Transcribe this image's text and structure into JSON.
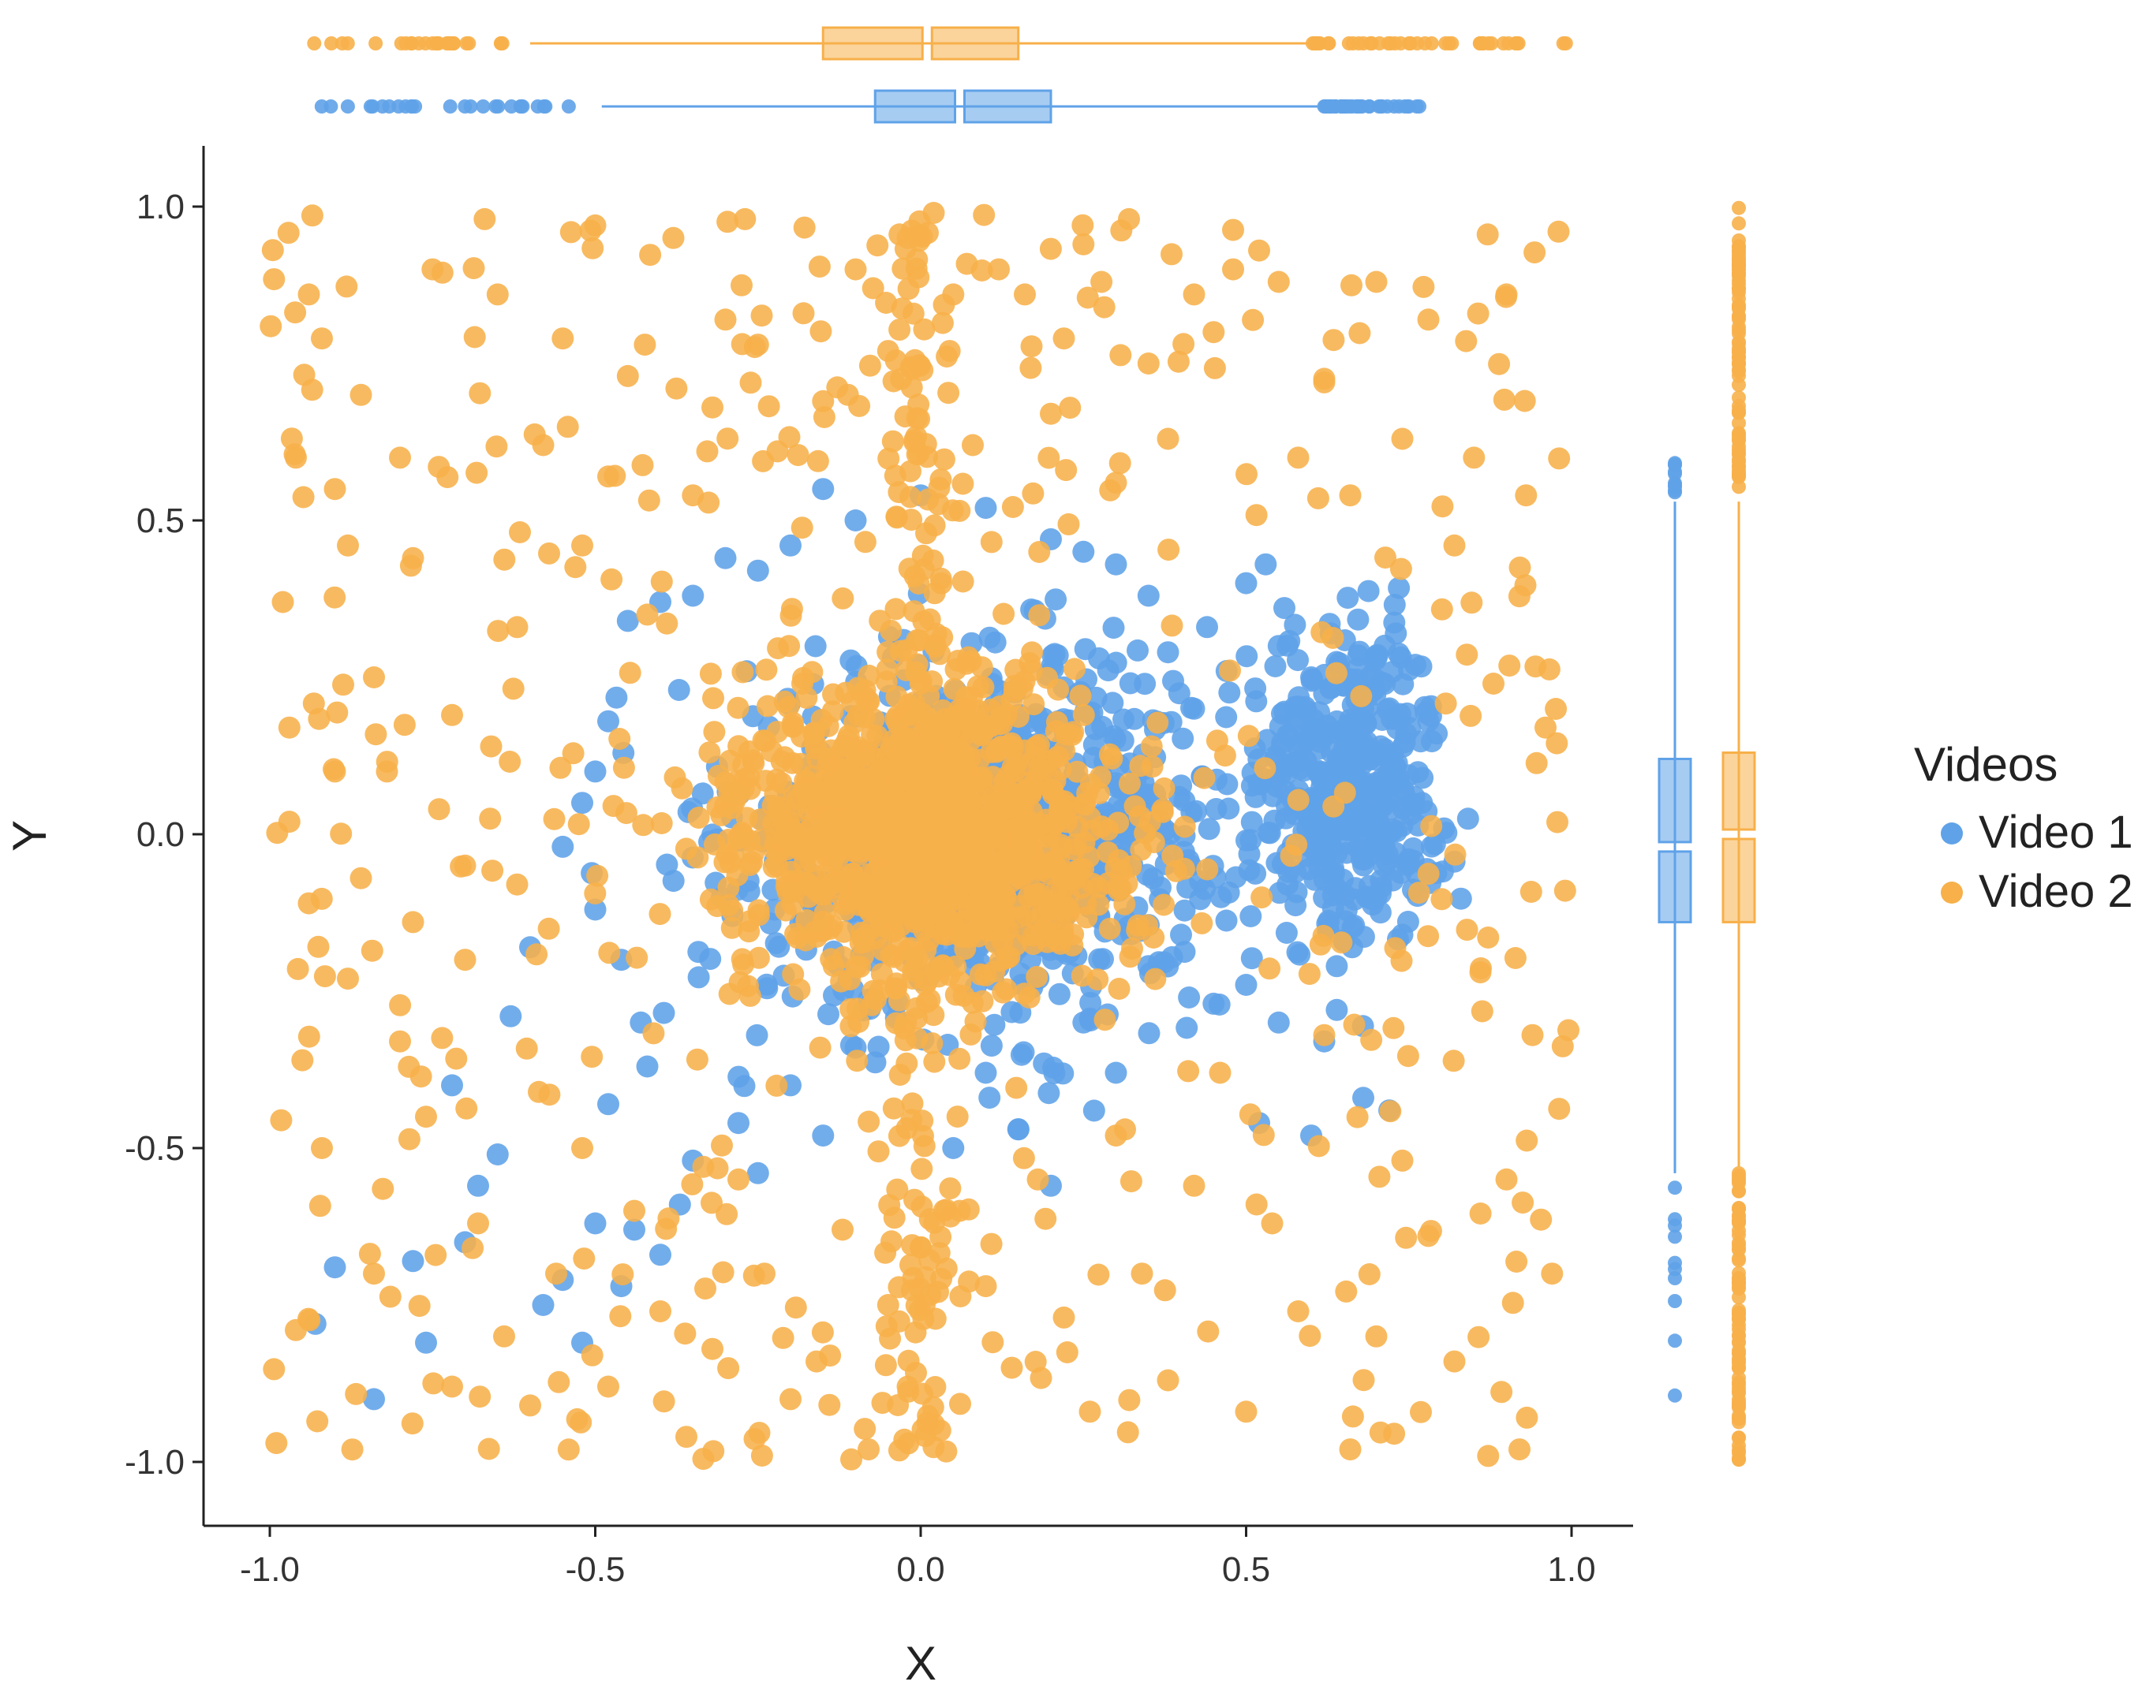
{
  "chart_data": {
    "type": "scatter",
    "title": "",
    "xlabel": "X",
    "ylabel": "Y",
    "xlim": [
      -1.09,
      1.09
    ],
    "ylim": [
      -1.09,
      1.09
    ],
    "x_ticks": [
      -1.0,
      -0.5,
      0.0,
      0.5,
      1.0
    ],
    "x_tick_labels": [
      "-1.0",
      "-0.5",
      "0.0",
      "0.5",
      "1.0"
    ],
    "y_ticks": [
      -1.0,
      -0.5,
      0.0,
      0.5,
      1.0
    ],
    "y_tick_labels": [
      "-1.0",
      "-0.5",
      "0.0",
      "0.5",
      "1.0"
    ],
    "grid": false,
    "legend": {
      "title": "Videos",
      "placement": "right"
    },
    "marginal_boxplots": true,
    "series": [
      {
        "name": "Video 1",
        "color": "#5fa2e8",
        "approx_point_count": 2000,
        "center": [
          0.1,
          0.0
        ],
        "x_box": {
          "whisker_low": -0.49,
          "q1": -0.07,
          "median": 0.06,
          "q3": 0.2,
          "whisker_high": 0.61,
          "outliers_range": [
            [
              -0.93,
              -0.51
            ],
            [
              0.62,
              0.79
            ]
          ]
        },
        "y_box": {
          "whisker_low": -0.54,
          "q1": -0.14,
          "median": -0.02,
          "q3": 0.12,
          "whisker_high": 0.53,
          "outliers_range": [
            [
              -0.9,
              -0.55
            ],
            [
              0.54,
              0.6
            ]
          ]
        },
        "points": [
          [
            -0.93,
            -0.78
          ],
          [
            -0.9,
            -0.69
          ],
          [
            -0.84,
            -0.9
          ],
          [
            -0.78,
            -0.68
          ],
          [
            -0.76,
            -0.81
          ],
          [
            -0.72,
            -0.4
          ],
          [
            -0.7,
            -0.65
          ],
          [
            -0.68,
            -0.56
          ],
          [
            -0.65,
            -0.51
          ],
          [
            -0.63,
            -0.29
          ],
          [
            -0.6,
            -0.18
          ],
          [
            -0.58,
            -0.75
          ],
          [
            -0.55,
            -0.71
          ],
          [
            -0.52,
            -0.81
          ],
          [
            -0.5,
            -0.62
          ],
          [
            -0.48,
            -0.43
          ],
          [
            -0.46,
            -0.72
          ],
          [
            -0.44,
            -0.63
          ],
          [
            -0.42,
            -0.37
          ],
          [
            -0.4,
            -0.67
          ],
          [
            -0.37,
            -0.59
          ],
          [
            -0.35,
            -0.52
          ],
          [
            -0.28,
            -0.46
          ],
          [
            -0.25,
            -0.54
          ],
          [
            -0.2,
            -0.4
          ],
          [
            -0.15,
            -0.48
          ],
          [
            -0.1,
            -0.34
          ],
          [
            0.05,
            -0.5
          ],
          [
            0.1,
            -0.38
          ],
          [
            0.15,
            -0.47
          ],
          [
            0.2,
            -0.56
          ],
          [
            0.25,
            -0.3
          ],
          [
            0.3,
            -0.38
          ],
          [
            0.35,
            -0.21
          ],
          [
            0.4,
            -0.16
          ],
          [
            0.45,
            -0.27
          ],
          [
            0.5,
            -0.24
          ],
          [
            0.52,
            -0.46
          ],
          [
            0.55,
            -0.3
          ],
          [
            0.6,
            -0.48
          ],
          [
            0.62,
            -0.33
          ],
          [
            0.65,
            -0.17
          ],
          [
            0.68,
            -0.42
          ],
          [
            0.7,
            -0.1
          ],
          [
            0.72,
            -0.44
          ],
          [
            0.74,
            -0.16
          ],
          [
            0.75,
            -0.04
          ],
          [
            0.77,
            0.05
          ],
          [
            0.78,
            0.18
          ],
          [
            0.76,
            0.27
          ],
          [
            0.73,
            0.32
          ],
          [
            0.7,
            0.28
          ],
          [
            0.68,
            0.2
          ],
          [
            0.65,
            0.12
          ],
          [
            0.63,
            0.32
          ],
          [
            0.6,
            0.25
          ],
          [
            0.58,
            0.07
          ],
          [
            0.55,
            0.3
          ],
          [
            0.53,
            0.43
          ],
          [
            0.5,
            0.4
          ],
          [
            0.47,
            0.26
          ],
          [
            0.44,
            0.33
          ],
          [
            0.42,
            0.2
          ],
          [
            0.38,
            0.29
          ],
          [
            0.35,
            0.38
          ],
          [
            0.3,
            0.43
          ],
          [
            0.25,
            0.45
          ],
          [
            0.2,
            0.47
          ],
          [
            0.1,
            0.52
          ],
          [
            0.0,
            0.54
          ],
          [
            -0.1,
            0.5
          ],
          [
            -0.15,
            0.55
          ],
          [
            -0.2,
            0.46
          ],
          [
            -0.25,
            0.42
          ],
          [
            -0.3,
            0.44
          ],
          [
            -0.35,
            0.38
          ],
          [
            -0.4,
            0.37
          ],
          [
            -0.45,
            0.34
          ],
          [
            -0.48,
            0.18
          ],
          [
            -0.5,
            0.1
          ],
          [
            -0.52,
            0.05
          ],
          [
            -0.55,
            -0.02
          ],
          [
            -0.5,
            -0.12
          ],
          [
            -0.46,
            -0.2
          ],
          [
            -0.43,
            -0.3
          ]
        ]
      },
      {
        "name": "Video 2",
        "color": "#f7b04a",
        "approx_point_count": 2000,
        "center": [
          0.0,
          0.0
        ],
        "x_box": {
          "whisker_low": -0.6,
          "q1": -0.15,
          "median": 0.01,
          "q3": 0.15,
          "whisker_high": 0.6,
          "outliers_range": [
            [
              -1.0,
              -0.6
            ],
            [
              0.6,
              1.0
            ]
          ]
        },
        "y_box": {
          "whisker_low": -0.53,
          "q1": -0.14,
          "median": 0.0,
          "q3": 0.13,
          "whisker_high": 0.53,
          "outliers_range": [
            [
              -1.0,
              -0.54
            ],
            [
              0.54,
              1.0
            ]
          ]
        },
        "points": [
          [
            -0.99,
            -0.97
          ],
          [
            -0.96,
            -0.79
          ],
          [
            -0.98,
            0.37
          ],
          [
            -0.97,
            0.17
          ],
          [
            -0.96,
            0.6
          ],
          [
            -0.94,
            0.86
          ],
          [
            -0.92,
            0.79
          ],
          [
            -0.9,
            0.55
          ],
          [
            -0.88,
            0.46
          ],
          [
            -0.86,
            0.7
          ],
          [
            -0.84,
            0.25
          ],
          [
            -0.8,
            0.6
          ],
          [
            -0.78,
            0.44
          ],
          [
            -0.75,
            0.9
          ],
          [
            -0.72,
            0.19
          ],
          [
            -0.7,
            -0.2
          ],
          [
            -0.67,
            0.98
          ],
          [
            -0.65,
            0.86
          ],
          [
            -0.62,
            0.33
          ],
          [
            -0.58,
            0.62
          ],
          [
            -0.55,
            0.79
          ],
          [
            -0.52,
            0.46
          ],
          [
            -0.5,
            0.97
          ],
          [
            -0.48,
            0.57
          ],
          [
            -0.45,
            0.73
          ],
          [
            -0.42,
            0.35
          ],
          [
            -0.38,
            0.95
          ],
          [
            -0.35,
            0.54
          ],
          [
            -0.32,
            0.68
          ],
          [
            -0.3,
            0.82
          ],
          [
            -0.27,
            0.98
          ],
          [
            -0.25,
            0.78
          ],
          [
            -0.22,
            0.61
          ],
          [
            -0.18,
            0.83
          ],
          [
            -0.15,
            0.69
          ],
          [
            -0.1,
            0.9
          ],
          [
            -0.05,
            0.77
          ],
          [
            -0.02,
            0.95
          ],
          [
            0.02,
            0.99
          ],
          [
            0.05,
            0.86
          ],
          [
            0.08,
            0.62
          ],
          [
            0.12,
            0.9
          ],
          [
            0.16,
            0.86
          ],
          [
            0.2,
            0.67
          ],
          [
            0.22,
            0.79
          ],
          [
            0.25,
            0.94
          ],
          [
            0.3,
            0.56
          ],
          [
            0.32,
            0.98
          ],
          [
            0.35,
            0.75
          ],
          [
            0.38,
            0.63
          ],
          [
            0.42,
            0.86
          ],
          [
            0.45,
            0.8
          ],
          [
            0.48,
            0.9
          ],
          [
            0.52,
            0.93
          ],
          [
            0.55,
            0.88
          ],
          [
            0.58,
            0.6
          ],
          [
            0.62,
            0.72
          ],
          [
            0.66,
            0.54
          ],
          [
            0.7,
            0.88
          ],
          [
            0.74,
            0.63
          ],
          [
            0.78,
            0.82
          ],
          [
            0.82,
            0.46
          ],
          [
            0.85,
            0.6
          ],
          [
            0.88,
            0.24
          ],
          [
            0.9,
            0.86
          ],
          [
            0.93,
            0.54
          ],
          [
            0.96,
            0.17
          ],
          [
            0.98,
            0.96
          ],
          [
            0.99,
            -0.09
          ],
          [
            0.97,
            -0.7
          ],
          [
            0.94,
            -0.32
          ],
          [
            0.92,
            -0.98
          ],
          [
            0.9,
            -0.55
          ],
          [
            0.86,
            -0.22
          ],
          [
            0.82,
            -0.84
          ],
          [
            0.78,
            -0.64
          ],
          [
            0.74,
            -0.52
          ],
          [
            0.7,
            -0.8
          ],
          [
            0.66,
            -0.98
          ],
          [
            0.62,
            -0.32
          ],
          [
            0.58,
            -0.76
          ],
          [
            0.54,
            -0.62
          ],
          [
            0.5,
            -0.92
          ],
          [
            0.46,
            -0.38
          ],
          [
            0.42,
            -0.56
          ],
          [
            0.38,
            -0.87
          ],
          [
            0.34,
            -0.7
          ],
          [
            0.3,
            -0.48
          ],
          [
            0.26,
            -0.92
          ],
          [
            0.22,
            -0.77
          ],
          [
            0.18,
            -0.55
          ],
          [
            0.14,
            -0.85
          ],
          [
            0.1,
            -0.72
          ],
          [
            0.06,
            -0.6
          ],
          [
            0.03,
            -0.95
          ],
          [
            -0.02,
            -0.88
          ],
          [
            -0.05,
            -0.75
          ],
          [
            -0.08,
            -0.98
          ],
          [
            -0.12,
            -0.63
          ],
          [
            -0.16,
            -0.84
          ],
          [
            -0.2,
            -0.9
          ],
          [
            -0.24,
            -0.7
          ],
          [
            -0.28,
            -0.55
          ],
          [
            -0.32,
            -0.82
          ],
          [
            -0.36,
            -0.96
          ],
          [
            -0.4,
            -0.76
          ],
          [
            -0.44,
            -0.6
          ],
          [
            -0.48,
            -0.88
          ],
          [
            -0.52,
            -0.5
          ],
          [
            -0.56,
            -0.7
          ],
          [
            -0.6,
            -0.91
          ],
          [
            -0.64,
            -0.8
          ],
          [
            -0.68,
            -0.62
          ],
          [
            -0.72,
            -0.88
          ],
          [
            -0.76,
            -0.45
          ],
          [
            -0.8,
            -0.33
          ],
          [
            -0.84,
            -0.7
          ],
          [
            -0.88,
            -0.23
          ],
          [
            -0.92,
            -0.5
          ],
          [
            -0.95,
            -0.36
          ],
          [
            -0.97,
            0.02
          ],
          [
            -0.94,
            -0.11
          ],
          [
            -0.9,
            0.1
          ],
          [
            -0.86,
            -0.07
          ],
          [
            -0.82,
            0.1
          ],
          [
            -0.78,
            -0.14
          ],
          [
            -0.74,
            0.04
          ],
          [
            -0.7,
            -0.05
          ],
          [
            -0.66,
            0.14
          ],
          [
            -0.62,
            -0.08
          ]
        ]
      }
    ]
  }
}
